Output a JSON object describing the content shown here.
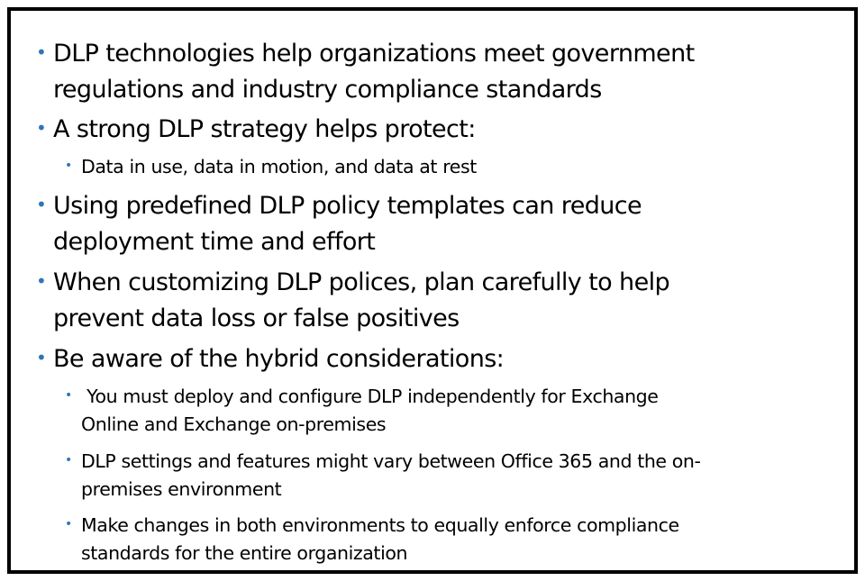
{
  "colors": {
    "bullet": "#2e75b6",
    "text": "#000000",
    "border": "#000000",
    "background": "#ffffff"
  },
  "bullet_glyph": "•",
  "bullets": [
    {
      "level": 1,
      "lines": [
        "DLP technologies help organizations meet government",
        "regulations and industry compliance standards"
      ]
    },
    {
      "level": 1,
      "lines": [
        "A strong DLP strategy helps protect:"
      ]
    },
    {
      "level": 2,
      "lines": [
        "Data in use, data in motion, and data at rest"
      ]
    },
    {
      "level": 1,
      "lines": [
        "Using predefined DLP policy templates can reduce",
        "deployment time and effort"
      ]
    },
    {
      "level": 1,
      "lines": [
        "When customizing DLP polices, plan carefully to help",
        "prevent data loss or false positives"
      ]
    },
    {
      "level": 1,
      "lines": [
        "Be aware of the hybrid considerations:"
      ]
    },
    {
      "level": 2,
      "lines": [
        " You must deploy and configure DLP independently for Exchange",
        "Online and Exchange on-premises"
      ]
    },
    {
      "level": 2,
      "lines": [
        "DLP settings and features might vary between Office 365 and the on-",
        "premises environment"
      ]
    },
    {
      "level": 2,
      "lines": [
        "Make changes in both environments to equally enforce compliance",
        "standards for the entire organization"
      ]
    }
  ]
}
